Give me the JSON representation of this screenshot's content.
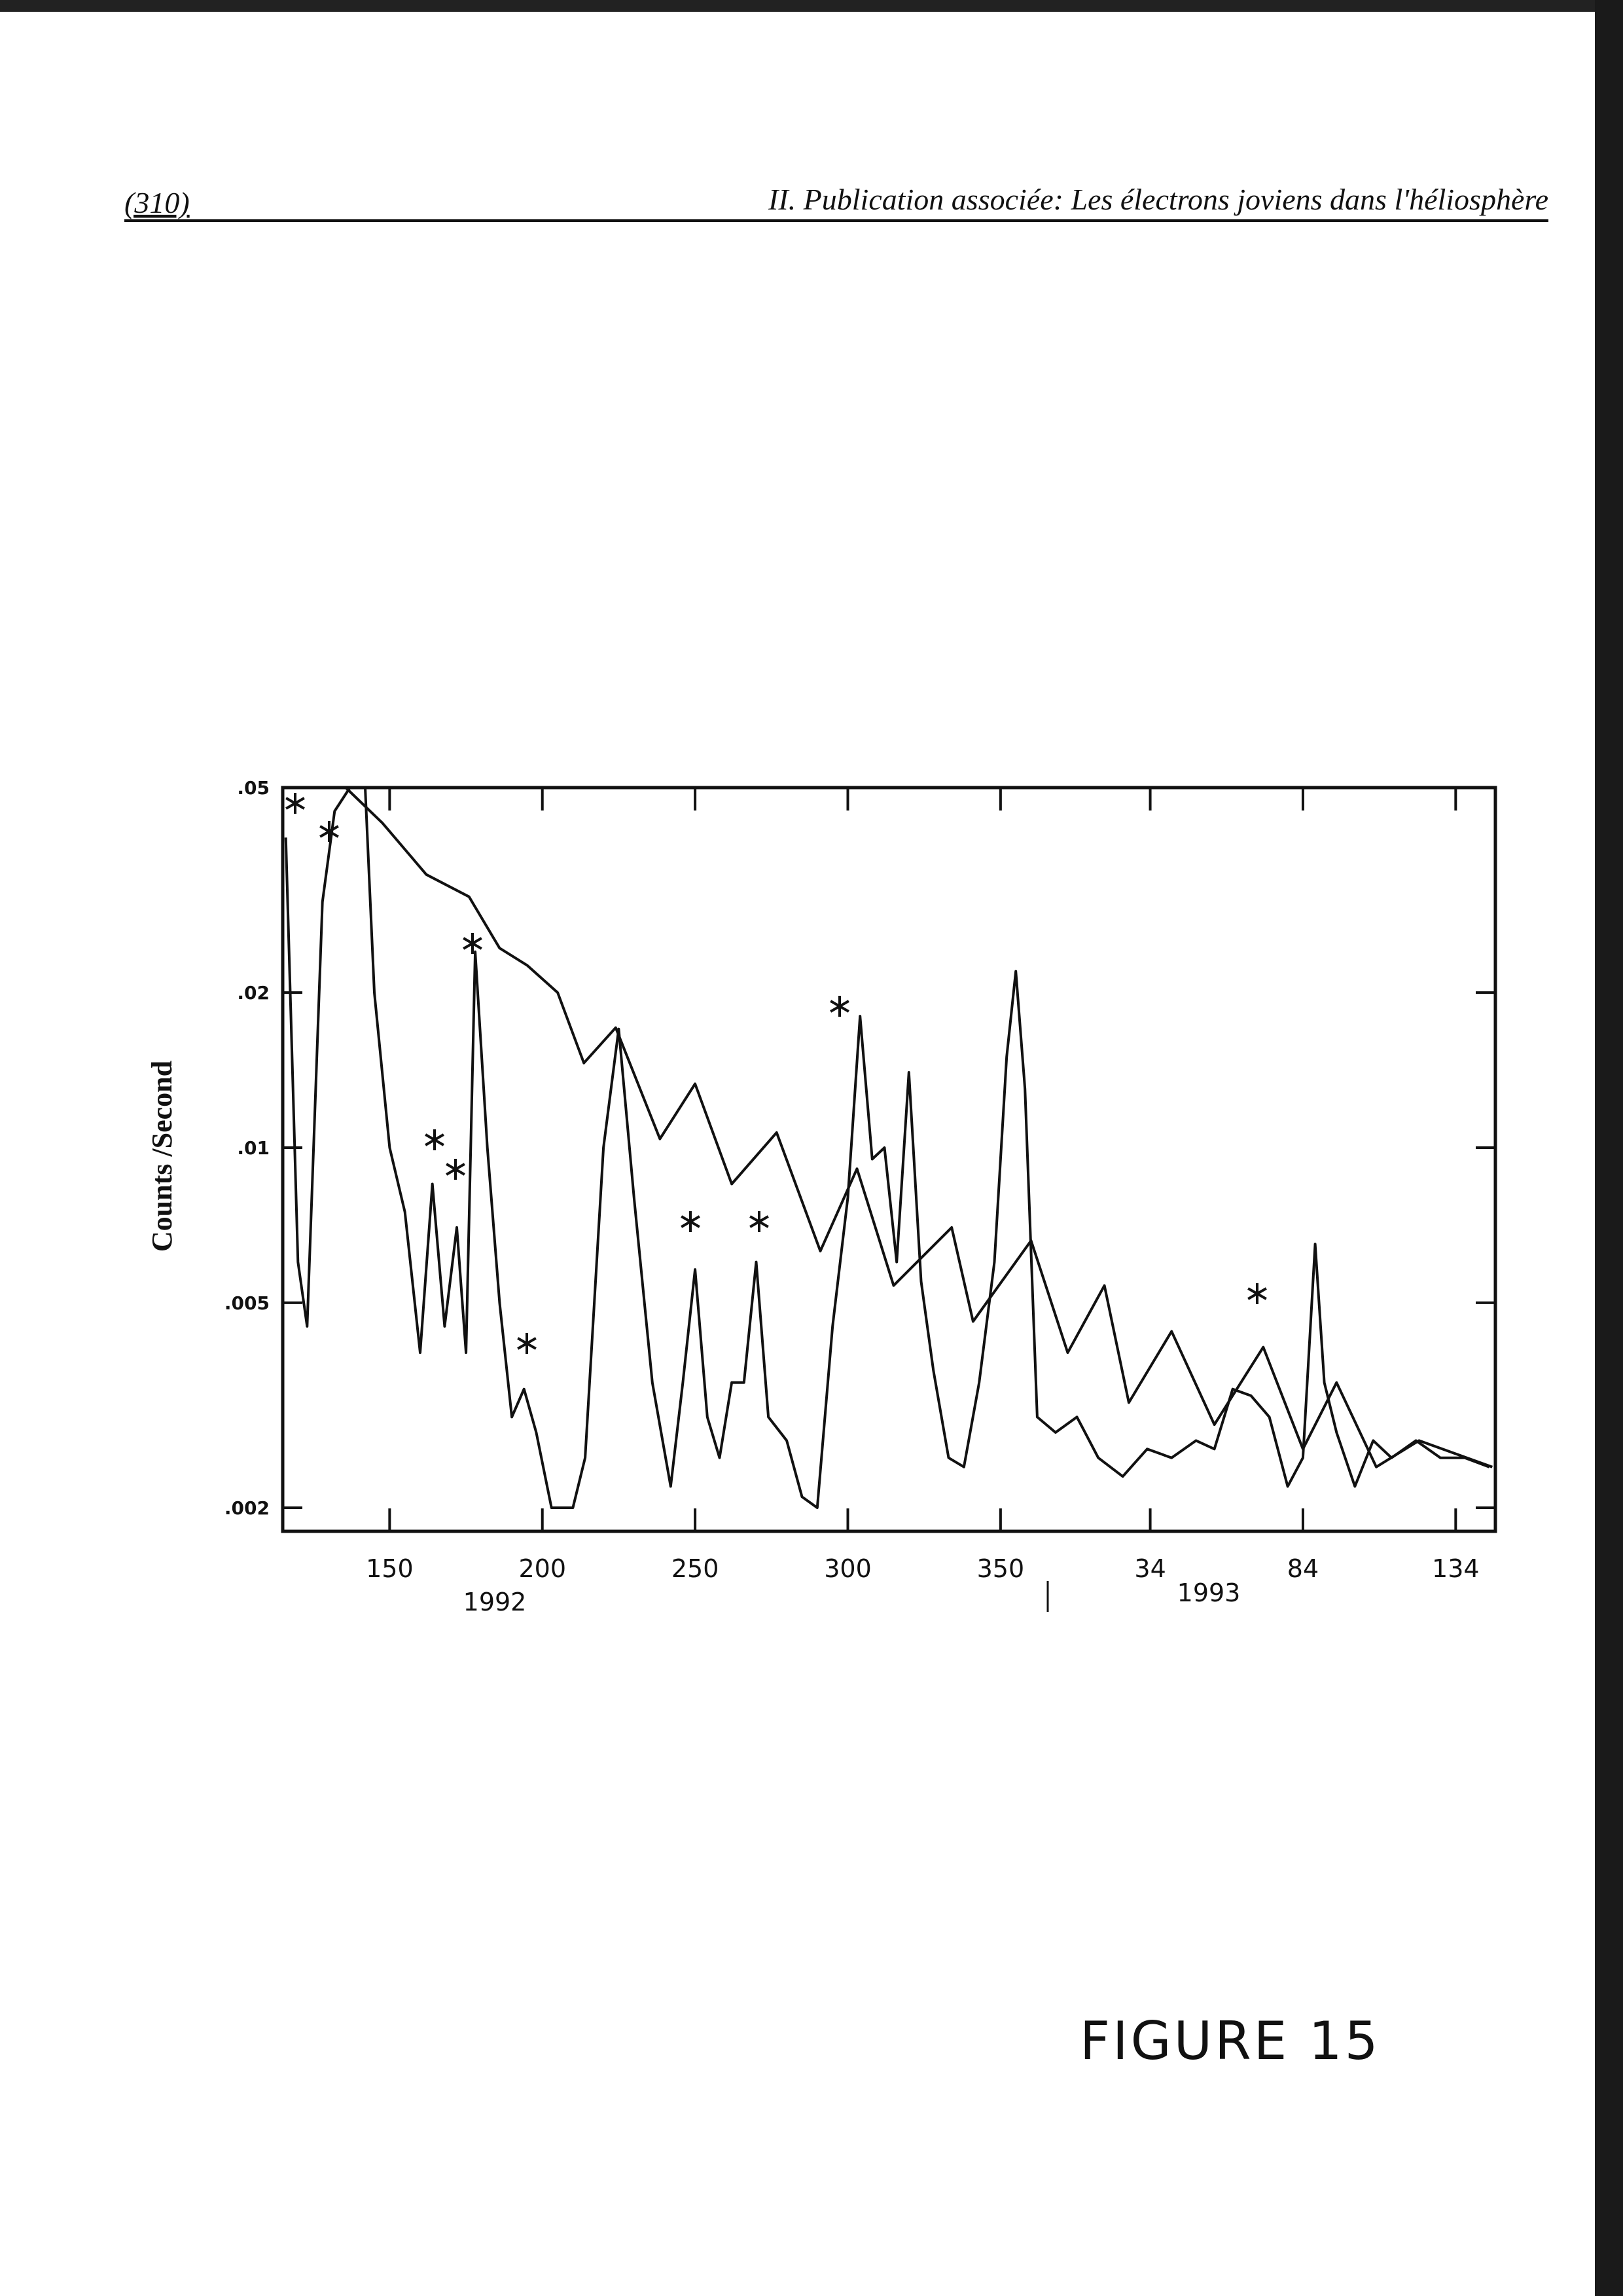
{
  "header": {
    "page_number": "(310)",
    "title": "II. Publication associée: Les électrons joviens dans l'héliosphère"
  },
  "chart_data": {
    "type": "line",
    "y_label": "Counts /Second",
    "yscale": "log",
    "xlim": [
      115,
      512
    ],
    "ylim": [
      0.0018,
      0.05
    ],
    "xticks": [
      150,
      200,
      250,
      300,
      350,
      {
        "value": 399,
        "label": "34"
      },
      {
        "value": 449,
        "label": "84"
      },
      {
        "value": 499,
        "label": "134"
      }
    ],
    "yticks": [
      {
        "value": 0.002,
        "label": ".002"
      },
      {
        "value": 0.005,
        "label": ".005"
      },
      {
        "value": 0.01,
        "label": ".01"
      },
      {
        "value": 0.02,
        "label": ".02"
      },
      {
        "value": 0.05,
        "label": ".05"
      }
    ],
    "annotations": [
      "1992",
      "1993"
    ],
    "series": [
      {
        "color": "#111111",
        "x": [
          116,
          120,
          123,
          128,
          132,
          137,
          142,
          145,
          150,
          155,
          160,
          164,
          168,
          172,
          175,
          178,
          182,
          186,
          190,
          194,
          198,
          203,
          210,
          214,
          220,
          225,
          230,
          236,
          242,
          246,
          250,
          254,
          258,
          262,
          266,
          270,
          274,
          280,
          285,
          290,
          295,
          300,
          304,
          308,
          312,
          316,
          320,
          324,
          328,
          333,
          338,
          343,
          348,
          352,
          355,
          358,
          362,
          368,
          375,
          382,
          390,
          398,
          406,
          414,
          420,
          426,
          432,
          438,
          444,
          449,
          453,
          456,
          460,
          466,
          472,
          478,
          486,
          494,
          502,
          510
        ],
        "values": [
          0.04,
          0.006,
          0.0045,
          0.03,
          0.045,
          0.05,
          0.05,
          0.02,
          0.01,
          0.0075,
          0.004,
          0.0085,
          0.0045,
          0.007,
          0.004,
          0.024,
          0.01,
          0.005,
          0.003,
          0.0034,
          0.0028,
          0.002,
          0.002,
          0.0025,
          0.01,
          0.017,
          0.008,
          0.0035,
          0.0022,
          0.0035,
          0.0058,
          0.003,
          0.0025,
          0.0035,
          0.0035,
          0.006,
          0.003,
          0.0027,
          0.0021,
          0.002,
          0.0045,
          0.008,
          0.018,
          0.0095,
          0.01,
          0.006,
          0.014,
          0.0055,
          0.0037,
          0.0025,
          0.0024,
          0.0035,
          0.006,
          0.015,
          0.022,
          0.013,
          0.003,
          0.0028,
          0.003,
          0.0025,
          0.0023,
          0.0026,
          0.0025,
          0.0027,
          0.0026,
          0.0034,
          0.0033,
          0.003,
          0.0022,
          0.0025,
          0.0065,
          0.0035,
          0.0028,
          0.0022,
          0.0027,
          0.0025,
          0.0027,
          0.0025,
          0.0025,
          0.0024
        ]
      },
      {
        "color": "#111111",
        "x": [
          135.6,
          147.6,
          162,
          176,
          186,
          195,
          205,
          213.6,
          224,
          238.5,
          250,
          262,
          276.7,
          291,
          303,
          315,
          334,
          341,
          360,
          372,
          384,
          392,
          406,
          420,
          436,
          449,
          460,
          473,
          487,
          511
        ],
        "values": [
          0.05,
          0.0427,
          0.0339,
          0.0307,
          0.0244,
          0.0226,
          0.02,
          0.0146,
          0.0171,
          0.0104,
          0.0133,
          0.0085,
          0.0107,
          0.0063,
          0.0091,
          0.0054,
          0.007,
          0.0046,
          0.0066,
          0.004,
          0.0054,
          0.0032,
          0.0044,
          0.0029,
          0.0041,
          0.0026,
          0.0035,
          0.0024,
          0.0027,
          0.0024
        ]
      }
    ]
  },
  "figure_label": "FIGURE 15"
}
